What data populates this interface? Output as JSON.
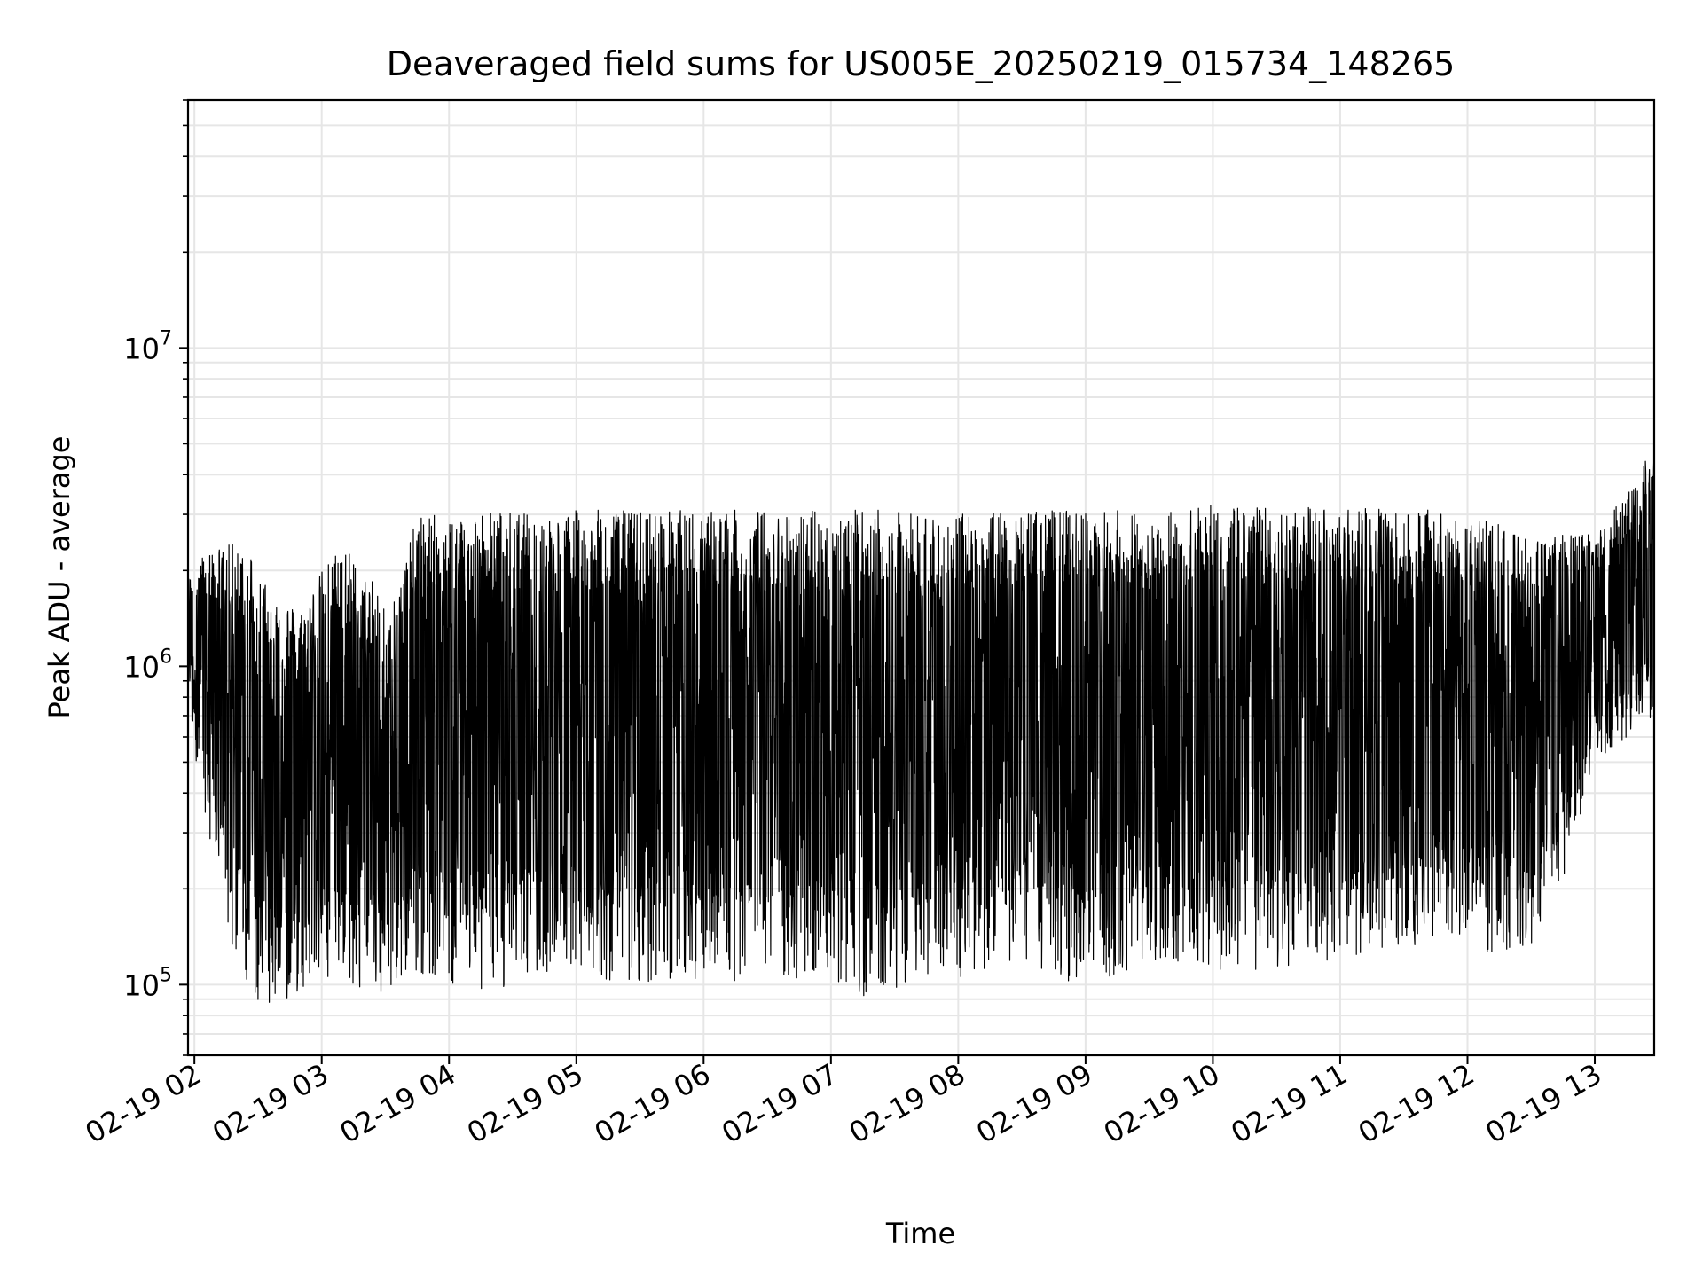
{
  "chart_data": {
    "type": "line",
    "title": "Deaveraged field sums for US005E_20250219_015734_148265",
    "xlabel": "Time",
    "ylabel": "Peak ADU - average",
    "yscale": "log",
    "ylim": [
      60000,
      60000000
    ],
    "xlim": [
      "2025-02-19 01:57",
      "2025-02-19 13:28"
    ],
    "grid": true,
    "line_color": "#000000",
    "x_ticks": [
      {
        "value": "2025-02-19 02:00",
        "label": "02-19 02"
      },
      {
        "value": "2025-02-19 03:00",
        "label": "02-19 03"
      },
      {
        "value": "2025-02-19 04:00",
        "label": "02-19 04"
      },
      {
        "value": "2025-02-19 05:00",
        "label": "02-19 05"
      },
      {
        "value": "2025-02-19 06:00",
        "label": "02-19 06"
      },
      {
        "value": "2025-02-19 07:00",
        "label": "02-19 07"
      },
      {
        "value": "2025-02-19 08:00",
        "label": "02-19 08"
      },
      {
        "value": "2025-02-19 09:00",
        "label": "02-19 09"
      },
      {
        "value": "2025-02-19 10:00",
        "label": "02-19 10"
      },
      {
        "value": "2025-02-19 11:00",
        "label": "02-19 11"
      },
      {
        "value": "2025-02-19 12:00",
        "label": "02-19 12"
      },
      {
        "value": "2025-02-19 13:00",
        "label": "02-19 13"
      }
    ],
    "y_ticks": [
      {
        "value": 100000,
        "base": "10",
        "exp": "5"
      },
      {
        "value": 1000000,
        "base": "10",
        "exp": "6"
      },
      {
        "value": 10000000,
        "base": "10",
        "exp": "7"
      }
    ],
    "envelope": [
      {
        "x": "2025-02-19 01:57",
        "low": 700000,
        "high": 1900000
      },
      {
        "x": "2025-02-19 02:05",
        "low": 350000,
        "high": 2300000
      },
      {
        "x": "2025-02-19 02:15",
        "low": 150000,
        "high": 2400000
      },
      {
        "x": "2025-02-19 02:25",
        "low": 100000,
        "high": 2500000
      },
      {
        "x": "2025-02-19 02:35",
        "low": 80000,
        "high": 1800000
      },
      {
        "x": "2025-02-19 02:50",
        "low": 95000,
        "high": 1500000
      },
      {
        "x": "2025-02-19 03:00",
        "low": 100000,
        "high": 2000000
      },
      {
        "x": "2025-02-19 03:10",
        "low": 100000,
        "high": 2500000
      },
      {
        "x": "2025-02-19 03:20",
        "low": 95000,
        "high": 1900000
      },
      {
        "x": "2025-02-19 03:35",
        "low": 95000,
        "high": 1700000
      },
      {
        "x": "2025-02-19 03:45",
        "low": 110000,
        "high": 3000000
      },
      {
        "x": "2025-02-19 04:00",
        "low": 100000,
        "high": 3000000
      },
      {
        "x": "2025-02-19 04:20",
        "low": 95000,
        "high": 3100000
      },
      {
        "x": "2025-02-19 04:45",
        "low": 100000,
        "high": 3000000
      },
      {
        "x": "2025-02-19 05:00",
        "low": 105000,
        "high": 3100000
      },
      {
        "x": "2025-02-19 05:30",
        "low": 100000,
        "high": 3100000
      },
      {
        "x": "2025-02-19 06:00",
        "low": 100000,
        "high": 3100000
      },
      {
        "x": "2025-02-19 06:30",
        "low": 105000,
        "high": 3100000
      },
      {
        "x": "2025-02-19 07:00",
        "low": 100000,
        "high": 3100000
      },
      {
        "x": "2025-02-19 07:20",
        "low": 90000,
        "high": 3100000
      },
      {
        "x": "2025-02-19 07:40",
        "low": 100000,
        "high": 3050000
      },
      {
        "x": "2025-02-19 08:00",
        "low": 105000,
        "high": 3000000
      },
      {
        "x": "2025-02-19 08:30",
        "low": 120000,
        "high": 3100000
      },
      {
        "x": "2025-02-19 09:00",
        "low": 95000,
        "high": 3100000
      },
      {
        "x": "2025-02-19 09:30",
        "low": 120000,
        "high": 3100000
      },
      {
        "x": "2025-02-19 10:00",
        "low": 110000,
        "high": 3200000
      },
      {
        "x": "2025-02-19 10:30",
        "low": 110000,
        "high": 3200000
      },
      {
        "x": "2025-02-19 11:00",
        "low": 120000,
        "high": 3100000
      },
      {
        "x": "2025-02-19 11:30",
        "low": 130000,
        "high": 3200000
      },
      {
        "x": "2025-02-19 12:00",
        "low": 140000,
        "high": 3000000
      },
      {
        "x": "2025-02-19 12:15",
        "low": 120000,
        "high": 2800000
      },
      {
        "x": "2025-02-19 12:30",
        "low": 130000,
        "high": 2600000
      },
      {
        "x": "2025-02-19 12:45",
        "low": 210000,
        "high": 2600000
      },
      {
        "x": "2025-02-19 13:00",
        "low": 500000,
        "high": 2600000
      },
      {
        "x": "2025-02-19 13:15",
        "low": 600000,
        "high": 3500000
      },
      {
        "x": "2025-02-19 13:28",
        "low": 700000,
        "high": 5000000
      }
    ]
  }
}
